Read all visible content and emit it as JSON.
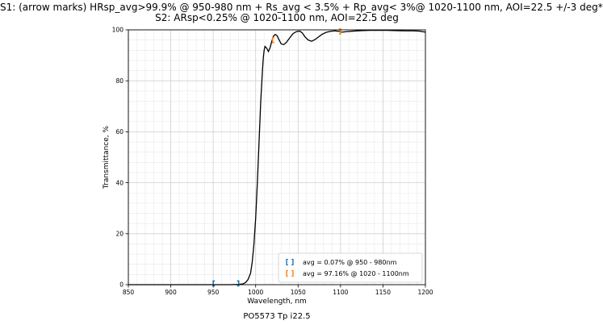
{
  "chart_data": {
    "type": "line",
    "title_lines": [
      "S1: (arrow marks) HRsp_avg>99.9% @ 950-980 nm + Rs_avg < 3.5% + Rp_avg< 3%@ 1020-1100 nm, AOI=22.5 +/-3 deg*",
      "S2:  ARsp<0.25% @ 1020-1100 nm, AOI=22.5 deg"
    ],
    "xlabel": "Wavelength, nm",
    "ylabel": "Transmittance, %",
    "xlim": [
      850,
      1200
    ],
    "ylim": [
      0,
      100
    ],
    "x_ticks": [
      850,
      900,
      950,
      1000,
      1050,
      1100,
      1150,
      1200
    ],
    "y_ticks": [
      0,
      20,
      40,
      60,
      80,
      100
    ],
    "grid": "major and minor",
    "legend_position": "lower-right",
    "series": [
      {
        "color": "#000000",
        "x": [
          850,
          900,
          950,
          970,
          980,
          985,
          988,
          991,
          994,
          996,
          998,
          1000,
          1002,
          1004,
          1006,
          1008,
          1009,
          1010,
          1011,
          1013,
          1015,
          1017,
          1019,
          1021,
          1023,
          1025,
          1027,
          1030,
          1033,
          1036,
          1040,
          1044,
          1048,
          1052,
          1055,
          1058,
          1062,
          1066,
          1070,
          1074,
          1078,
          1083,
          1088,
          1093,
          1098,
          1102,
          1107,
          1115,
          1125,
          1135,
          1145,
          1155,
          1165,
          1175,
          1185,
          1193,
          1200
        ],
        "y": [
          0.0,
          0.0,
          0.0,
          0.0,
          0.1,
          0.3,
          0.8,
          2.0,
          4.5,
          9.0,
          16.0,
          26.0,
          40.0,
          56.0,
          72.0,
          84.0,
          89.0,
          92.0,
          93.5,
          92.8,
          91.5,
          93.0,
          95.5,
          97.5,
          98.2,
          97.8,
          96.5,
          94.5,
          94.2,
          95.0,
          96.8,
          98.5,
          99.3,
          99.5,
          98.8,
          97.3,
          96.0,
          95.5,
          96.2,
          97.2,
          98.2,
          99.0,
          99.4,
          99.6,
          99.4,
          99.1,
          99.3,
          99.5,
          99.7,
          99.8,
          99.8,
          99.8,
          99.7,
          99.6,
          99.6,
          99.5,
          99.1
        ]
      }
    ],
    "markers": [
      {
        "color": "#1f77b4",
        "symbol": "[",
        "x": 950,
        "y": 0.5
      },
      {
        "color": "#1f77b4",
        "symbol": "]",
        "x": 980,
        "y": 0.5
      },
      {
        "color": "#ff7f0e",
        "symbol": "[",
        "x": 1020,
        "y": 96.0
      },
      {
        "color": "#ff7f0e",
        "symbol": "]",
        "x": 1100,
        "y": 99.4
      }
    ],
    "legend": [
      {
        "symbol": "[ ]",
        "color": "#1f77b4",
        "label": "avg = 0.07% @ 950 - 980nm"
      },
      {
        "symbol": "[ ]",
        "color": "#ff7f0e",
        "label": "avg = 97.16% @ 1020 - 1100nm"
      }
    ]
  },
  "footer": "PO5573 Tp i22.5"
}
